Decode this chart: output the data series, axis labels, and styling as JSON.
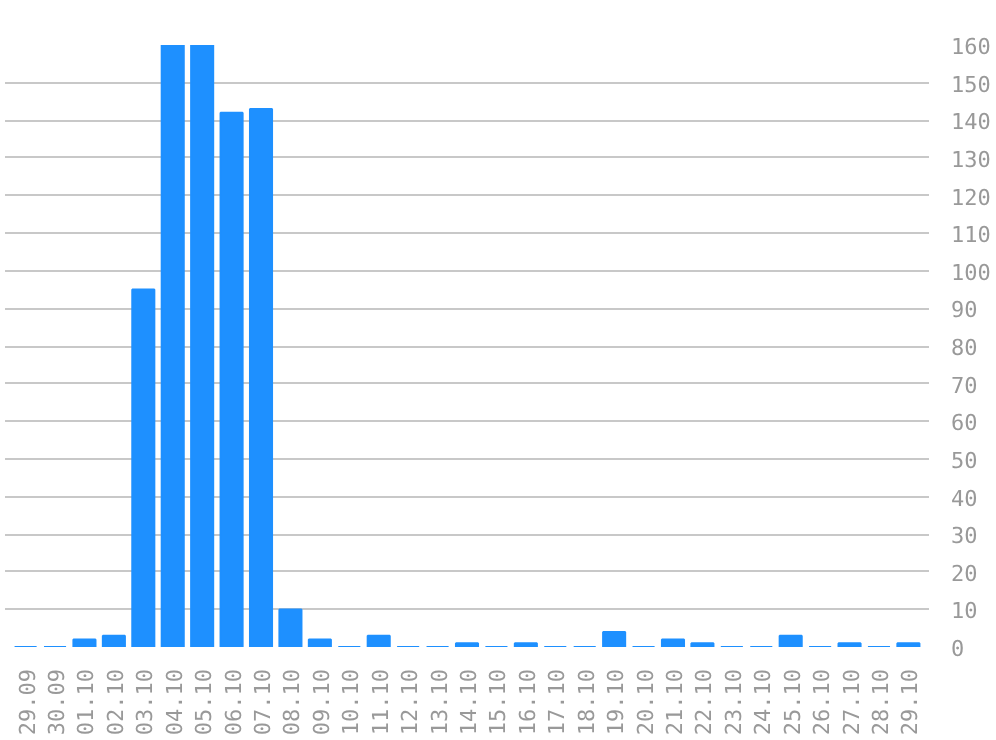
{
  "chart_data": {
    "type": "bar",
    "categories": [
      "29.09",
      "30.09",
      "01.10",
      "02.10",
      "03.10",
      "04.10",
      "05.10",
      "06.10",
      "07.10",
      "08.10",
      "09.10",
      "10.10",
      "11.10",
      "12.10",
      "13.10",
      "14.10",
      "15.10",
      "16.10",
      "17.10",
      "18.10",
      "19.10",
      "20.10",
      "21.10",
      "22.10",
      "23.10",
      "24.10",
      "25.10",
      "26.10",
      "27.10",
      "28.10",
      "29.10"
    ],
    "values": [
      0,
      0,
      2,
      3,
      95,
      160,
      160,
      142,
      143,
      10,
      2,
      0,
      3,
      0,
      0,
      1,
      0,
      1,
      0,
      0,
      4,
      0,
      2,
      1,
      0,
      0,
      3,
      0,
      1,
      0,
      1
    ],
    "color": "#1e90ff",
    "ylim": [
      0,
      160
    ],
    "yticks": [
      0,
      10,
      20,
      30,
      40,
      50,
      60,
      70,
      80,
      90,
      100,
      110,
      120,
      130,
      140,
      150,
      160
    ],
    "grid": "y"
  }
}
